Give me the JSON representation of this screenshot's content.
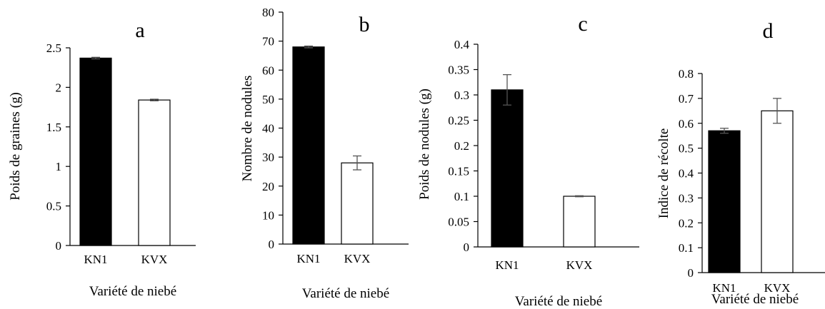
{
  "chart_data": [
    {
      "type": "bar",
      "panel_label": "a",
      "categories": [
        "KN1",
        "KVX"
      ],
      "values": [
        2.37,
        1.84
      ],
      "errors": [
        0.01,
        0.01
      ],
      "ylabel": "Poids de graines (g)",
      "xlabel": "Variété de niebé",
      "ylim": [
        0,
        2.5
      ],
      "yticks": [
        "0",
        "0.5",
        "1",
        "1.5",
        "2",
        "2.5"
      ],
      "bar_colors": [
        "#000000",
        "#ffffff"
      ]
    },
    {
      "type": "bar",
      "panel_label": "b",
      "categories": [
        "KN1",
        "KVX"
      ],
      "values": [
        68,
        28
      ],
      "errors": [
        0.3,
        2.4
      ],
      "ylabel": "Nombre de nodules",
      "xlabel": "Variété de niebé",
      "ylim": [
        0,
        80
      ],
      "yticks": [
        "0",
        "10",
        "20",
        "30",
        "40",
        "50",
        "60",
        "70",
        "80"
      ],
      "bar_colors": [
        "#000000",
        "#ffffff"
      ]
    },
    {
      "type": "bar",
      "panel_label": "c",
      "categories": [
        "KN1",
        "KVX"
      ],
      "values": [
        0.31,
        0.1
      ],
      "errors": [
        0.03,
        0.001
      ],
      "ylabel": "Poids de nodules (g)",
      "xlabel": "Variété de niebé",
      "ylim": [
        0,
        0.4
      ],
      "yticks": [
        "0",
        "0.05",
        "0.1",
        "0.15",
        "0.2",
        "0.25",
        "0.3",
        "0.35",
        "0.4"
      ],
      "bar_colors": [
        "#000000",
        "#ffffff"
      ]
    },
    {
      "type": "bar",
      "panel_label": "d",
      "categories": [
        "KN1",
        "KVX"
      ],
      "values": [
        0.57,
        0.65
      ],
      "errors": [
        0.01,
        0.05
      ],
      "ylabel": "Indice de récolte",
      "xlabel": "Variété de niebé",
      "ylim": [
        0,
        0.8
      ],
      "yticks": [
        "0",
        "0.1",
        "0.2",
        "0.3",
        "0.4",
        "0.5",
        "0.6",
        "0.7",
        "0.8"
      ],
      "bar_colors": [
        "#000000",
        "#ffffff"
      ]
    }
  ]
}
